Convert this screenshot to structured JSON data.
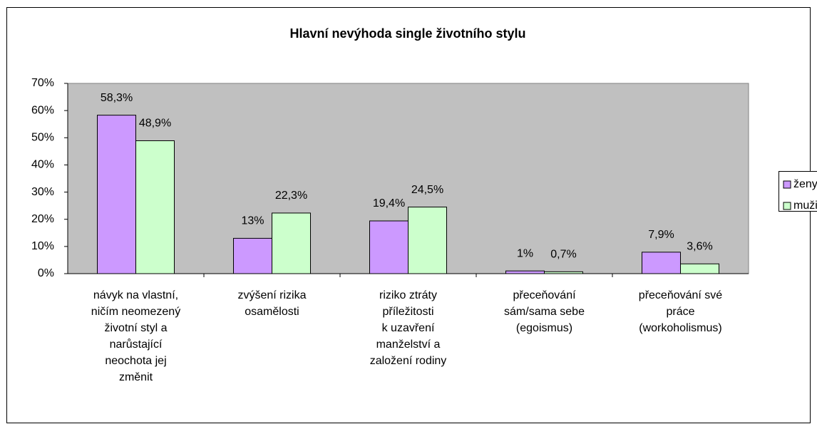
{
  "chart_data": {
    "type": "bar",
    "title": "Hlavní nevýhoda single životního stylu",
    "categories": [
      [
        "návyk na vlastní,",
        "ničím neomezený",
        "životní styl a",
        "narůstající",
        "neochota jej",
        "změnit"
      ],
      [
        "zvýšení rizika",
        "osamělosti"
      ],
      [
        "riziko ztráty",
        "příležitosti",
        "k uzavření",
        "manželství a",
        "založení rodiny"
      ],
      [
        "přeceňování",
        "sám/sama sebe",
        "(egoismus)"
      ],
      [
        "přeceňování své",
        "práce",
        "(workoholismus)"
      ]
    ],
    "series": [
      {
        "name": "ženy",
        "color": "#cc99ff",
        "values": [
          58.3,
          13,
          19.4,
          1,
          7.9
        ],
        "value_labels": [
          "58,3%",
          "13%",
          "19,4%",
          "1%",
          "7,9%"
        ]
      },
      {
        "name": "muži",
        "color": "#ccffcc",
        "values": [
          48.9,
          22.3,
          24.5,
          0.7,
          3.6
        ],
        "value_labels": [
          "48,9%",
          "22,3%",
          "24,5%",
          "0,7%",
          "3,6%"
        ]
      }
    ],
    "ylim": [
      0,
      70
    ],
    "yticks": [
      {
        "value": 0,
        "label": "0%"
      },
      {
        "value": 10,
        "label": "10%"
      },
      {
        "value": 20,
        "label": "20%"
      },
      {
        "value": 30,
        "label": "30%"
      },
      {
        "value": 40,
        "label": "40%"
      },
      {
        "value": 50,
        "label": "50%"
      },
      {
        "value": 60,
        "label": "60%"
      },
      {
        "value": 70,
        "label": "70%"
      }
    ],
    "legend": "right"
  }
}
